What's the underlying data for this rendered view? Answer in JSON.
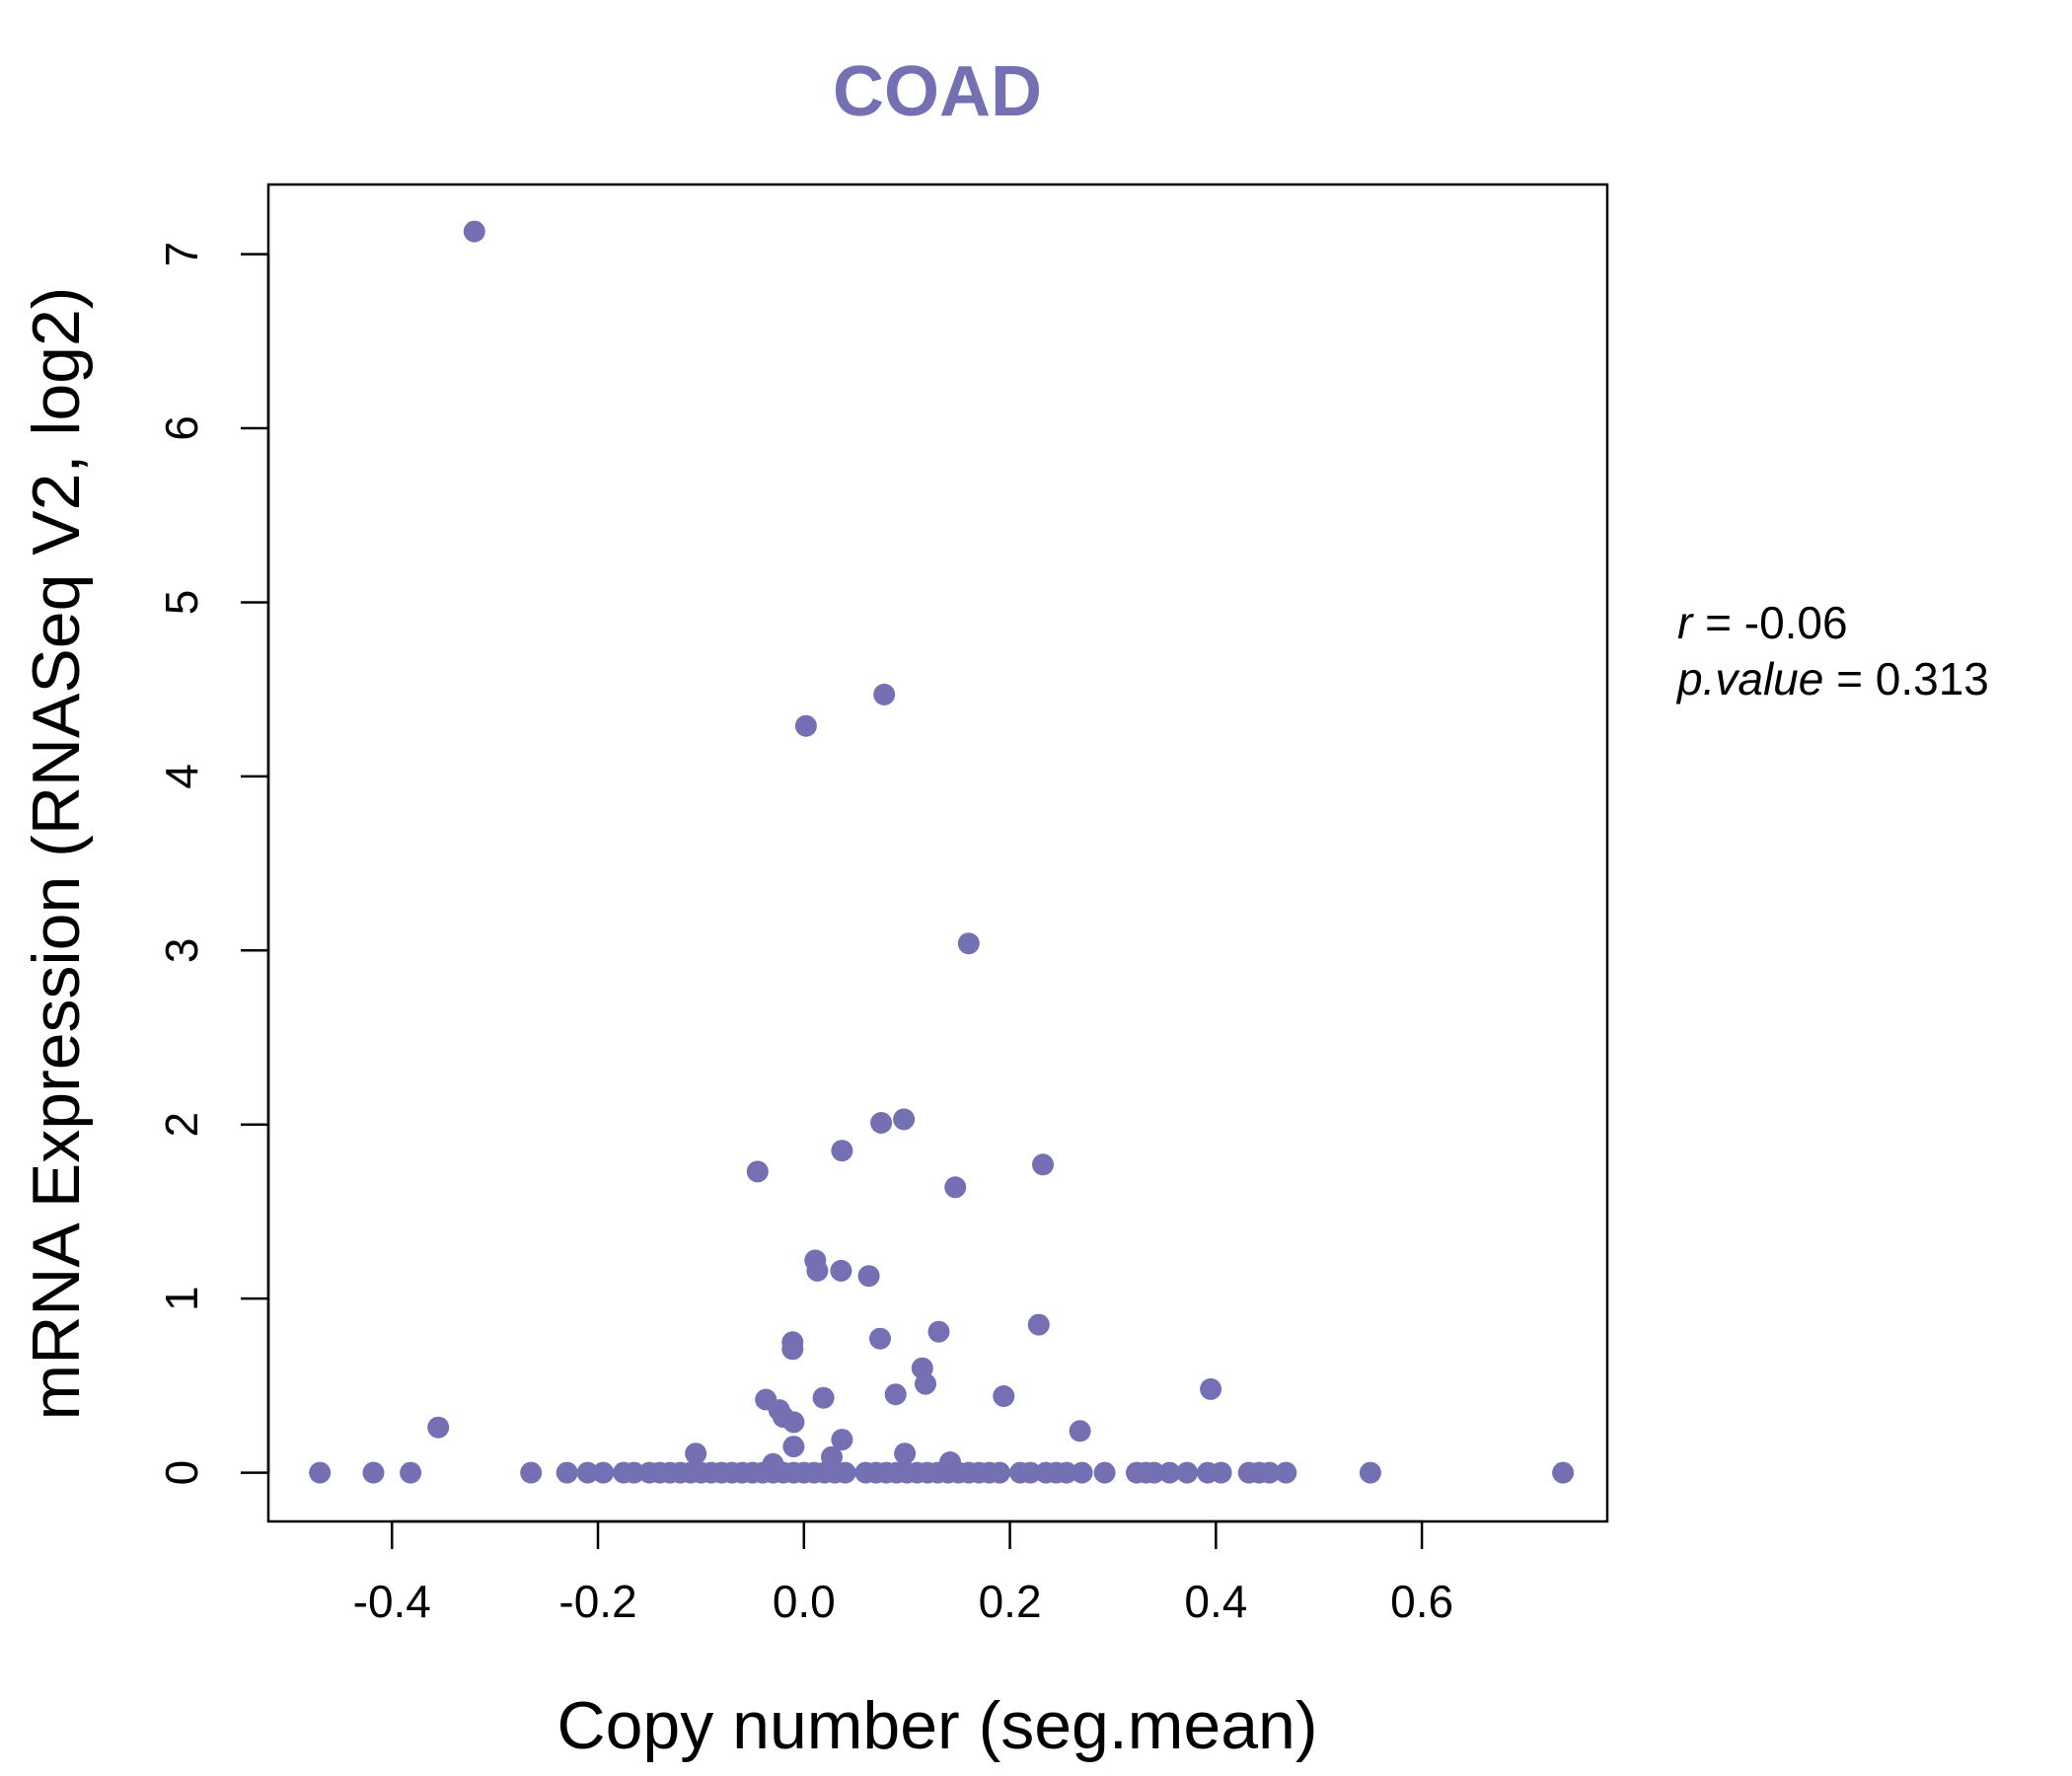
{
  "chart_data": {
    "type": "scatter",
    "title": "COAD",
    "xlabel": "Copy number (seg.mean)",
    "ylabel": "mRNA Expression (RNASeq V2, log2)",
    "xlim": [
      -0.52,
      0.78
    ],
    "ylim": [
      -0.28,
      7.4
    ],
    "xticks": [
      -0.4,
      -0.2,
      0.0,
      0.2,
      0.4,
      0.6
    ],
    "xtick_labels": [
      "-0.4",
      "-0.2",
      "0.0",
      "0.2",
      "0.4",
      "0.6"
    ],
    "yticks": [
      0,
      1,
      2,
      3,
      4,
      5,
      6,
      7
    ],
    "ytick_labels": [
      "0",
      "1",
      "2",
      "3",
      "4",
      "5",
      "6",
      "7"
    ],
    "point_color": "#7570b3",
    "annotation": {
      "r_label": "r",
      "r_eq": " = -0.06",
      "p_label": "p.value",
      "p_eq": " = 0.313"
    },
    "points": [
      [
        -0.32,
        7.13
      ],
      [
        0.078,
        4.47
      ],
      [
        0.002,
        4.29
      ],
      [
        0.16,
        3.04
      ],
      [
        0.097,
        2.03
      ],
      [
        0.075,
        2.01
      ],
      [
        0.037,
        1.85
      ],
      [
        0.232,
        1.77
      ],
      [
        -0.045,
        1.73
      ],
      [
        0.147,
        1.64
      ],
      [
        0.011,
        1.22
      ],
      [
        0.013,
        1.16
      ],
      [
        0.036,
        1.16
      ],
      [
        0.063,
        1.13
      ],
      [
        0.228,
        0.85
      ],
      [
        0.131,
        0.81
      ],
      [
        0.074,
        0.77
      ],
      [
        -0.011,
        0.75
      ],
      [
        -0.011,
        0.71
      ],
      [
        0.115,
        0.6
      ],
      [
        0.118,
        0.51
      ],
      [
        0.395,
        0.48
      ],
      [
        0.089,
        0.45
      ],
      [
        0.194,
        0.44
      ],
      [
        0.019,
        0.43
      ],
      [
        -0.037,
        0.42
      ],
      [
        -0.024,
        0.36
      ],
      [
        -0.02,
        0.32
      ],
      [
        -0.01,
        0.29
      ],
      [
        -0.355,
        0.26
      ],
      [
        0.268,
        0.24
      ],
      [
        0.037,
        0.19
      ],
      [
        -0.01,
        0.15
      ],
      [
        -0.105,
        0.11
      ],
      [
        0.098,
        0.11
      ],
      [
        0.027,
        0.09
      ],
      [
        0.142,
        0.06
      ],
      [
        -0.03,
        0.05
      ],
      [
        -0.47,
        0.0
      ],
      [
        -0.418,
        0.0
      ],
      [
        -0.382,
        0.0
      ],
      [
        -0.265,
        0.0
      ],
      [
        -0.23,
        0.0
      ],
      [
        -0.21,
        0.0
      ],
      [
        -0.195,
        0.0
      ],
      [
        -0.175,
        0.0
      ],
      [
        -0.165,
        0.0
      ],
      [
        -0.15,
        0.0
      ],
      [
        -0.14,
        0.0
      ],
      [
        -0.13,
        0.0
      ],
      [
        -0.12,
        0.0
      ],
      [
        -0.11,
        0.0
      ],
      [
        -0.1,
        0.0
      ],
      [
        -0.09,
        0.0
      ],
      [
        -0.08,
        0.0
      ],
      [
        -0.07,
        0.0
      ],
      [
        -0.06,
        0.0
      ],
      [
        -0.05,
        0.0
      ],
      [
        -0.04,
        0.0
      ],
      [
        -0.03,
        0.0
      ],
      [
        -0.02,
        0.0
      ],
      [
        -0.01,
        0.0
      ],
      [
        0.0,
        0.0
      ],
      [
        0.01,
        0.0
      ],
      [
        0.02,
        0.0
      ],
      [
        0.03,
        0.0
      ],
      [
        0.04,
        0.0
      ],
      [
        0.06,
        0.0
      ],
      [
        0.07,
        0.0
      ],
      [
        0.08,
        0.0
      ],
      [
        0.09,
        0.0
      ],
      [
        0.1,
        0.0
      ],
      [
        0.11,
        0.0
      ],
      [
        0.12,
        0.0
      ],
      [
        0.13,
        0.0
      ],
      [
        0.14,
        0.0
      ],
      [
        0.15,
        0.0
      ],
      [
        0.16,
        0.0
      ],
      [
        0.17,
        0.0
      ],
      [
        0.18,
        0.0
      ],
      [
        0.19,
        0.0
      ],
      [
        0.21,
        0.0
      ],
      [
        0.22,
        0.0
      ],
      [
        0.235,
        0.0
      ],
      [
        0.245,
        0.0
      ],
      [
        0.255,
        0.0
      ],
      [
        0.27,
        0.0
      ],
      [
        0.292,
        0.0
      ],
      [
        0.323,
        0.0
      ],
      [
        0.332,
        0.0
      ],
      [
        0.34,
        0.0
      ],
      [
        0.355,
        0.0
      ],
      [
        0.372,
        0.0
      ],
      [
        0.392,
        0.0
      ],
      [
        0.405,
        0.0
      ],
      [
        0.432,
        0.0
      ],
      [
        0.442,
        0.0
      ],
      [
        0.452,
        0.0
      ],
      [
        0.468,
        0.0
      ],
      [
        0.55,
        0.0
      ],
      [
        0.737,
        0.0
      ]
    ]
  }
}
